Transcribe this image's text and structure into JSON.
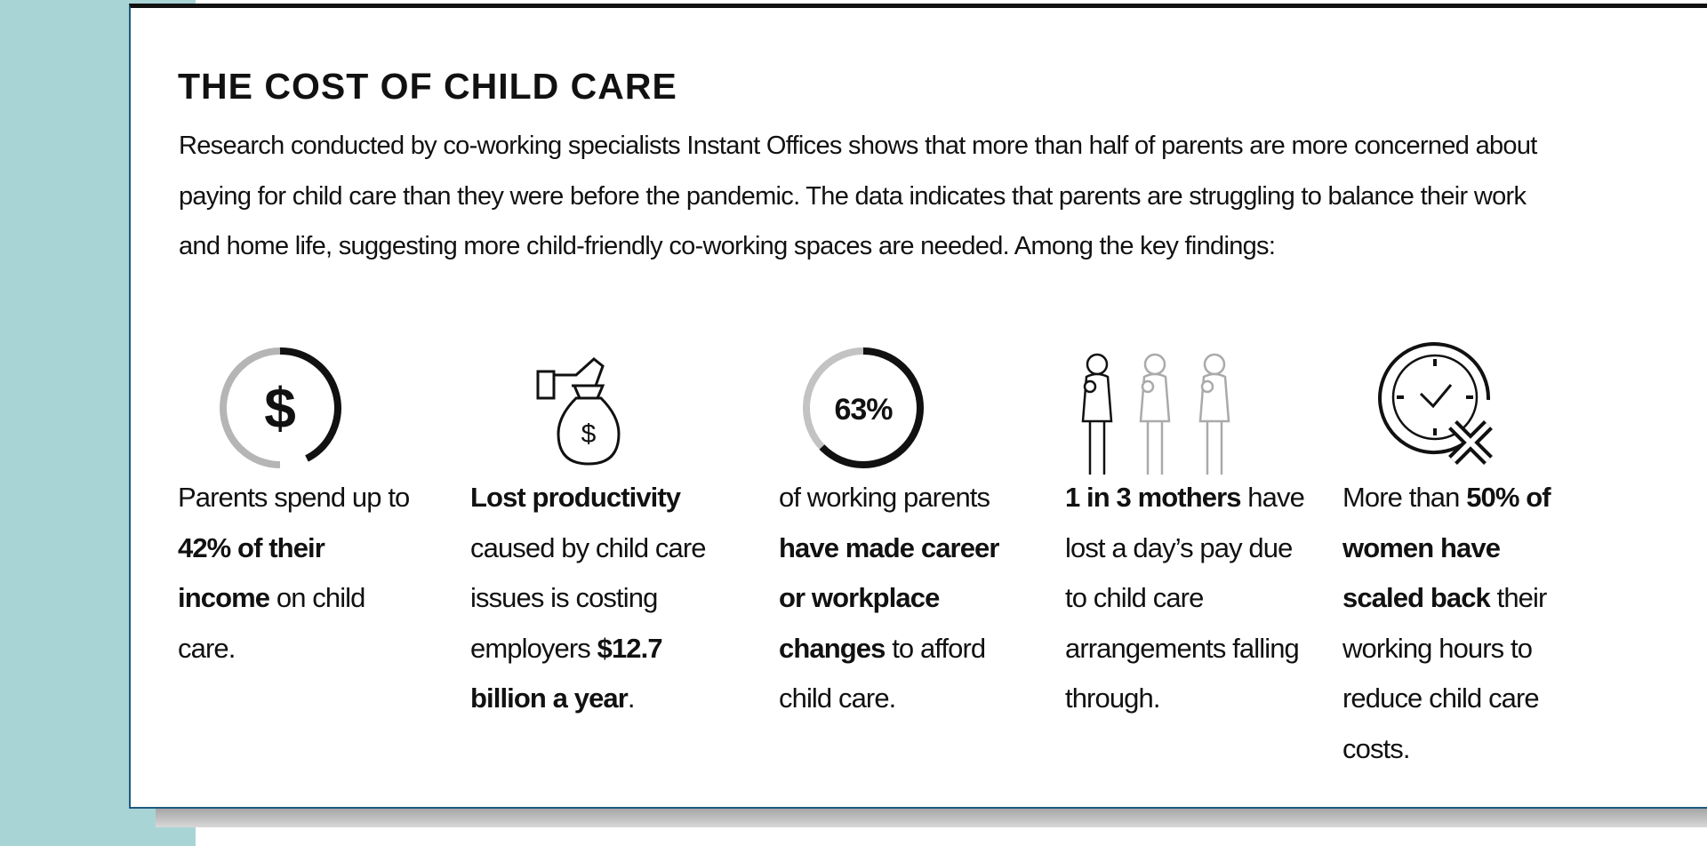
{
  "header": {
    "title": "THE COST OF CHILD CARE",
    "intro": "Research conducted by co-working specialists Instant Offices shows that more than half of parents are more concerned about paying for child care than they were before the pandemic. The data indicates that parents are struggling to balance their work and home life, suggesting more child-friendly co-working spaces are needed. Among the key findings:"
  },
  "findings": [
    {
      "icon_label": "$",
      "runs": [
        {
          "text": "Parents spend up to ",
          "bold": false
        },
        {
          "text": "42% of their income",
          "bold": true
        },
        {
          "text": " on child care.",
          "bold": false
        }
      ]
    },
    {
      "icon_label": "$",
      "runs": [
        {
          "text": "Lost productivity",
          "bold": true
        },
        {
          "text": " caused by child care issues is costing employers ",
          "bold": false
        },
        {
          "text": "$12.7 billion a year",
          "bold": true
        },
        {
          "text": ".",
          "bold": false
        }
      ]
    },
    {
      "icon_label": "63%",
      "runs": [
        {
          "text": "of working parents ",
          "bold": false
        },
        {
          "text": "have made career or workplace changes",
          "bold": true
        },
        {
          "text": " to afford child care.",
          "bold": false
        }
      ]
    },
    {
      "runs": [
        {
          "text": "1 in 3 mothers",
          "bold": true
        },
        {
          "text": " have lost a day’s pay due to child care arrangements falling through.",
          "bold": false
        }
      ]
    },
    {
      "runs": [
        {
          "text": "More than ",
          "bold": false
        },
        {
          "text": "50% of women have scaled back",
          "bold": true
        },
        {
          "text": " their working hours to reduce child care costs.",
          "bold": false
        }
      ]
    }
  ]
}
